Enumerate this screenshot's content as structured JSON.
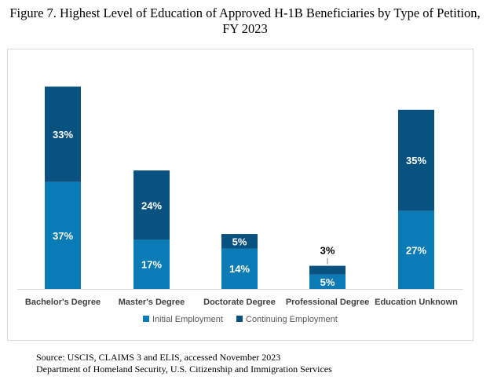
{
  "figure": {
    "title_line1": "Figure 7. Highest Level of Education of Approved H-1B Beneficiaries by Type of Petition,",
    "title_line2": "FY 2023"
  },
  "colors": {
    "initial": "#0a7bb5",
    "continuing": "#09527f",
    "label_light": "#ffffff",
    "label_dark": "#000000",
    "axis": "#d9d9d9"
  },
  "chart_data": {
    "type": "bar",
    "stacked": true,
    "title": "Highest Level of Education of Approved H-1B Beneficiaries by Type of Petition, FY 2023",
    "categories": [
      "Bachelor's Degree",
      "Master's Degree",
      "Doctorate Degree",
      "Professional Degree",
      "Education Unknown"
    ],
    "series": [
      {
        "name": "Initial Employment",
        "values": [
          37,
          17,
          14,
          5,
          27
        ],
        "labels": [
          "37%",
          "17%",
          "14%",
          "5%",
          "27%"
        ]
      },
      {
        "name": "Continuing Employment",
        "values": [
          33,
          24,
          5,
          3,
          35
        ],
        "labels": [
          "33%",
          "24%",
          "5%",
          "3%",
          "35%"
        ]
      }
    ],
    "xlabel": "",
    "ylabel": "",
    "ylim": [
      0,
      72
    ],
    "grid": false,
    "legend": "bottom",
    "value_format": "percent"
  },
  "source": {
    "line1": "Source: USCIS, CLAIMS 3 and ELIS, accessed November 2023",
    "line2": "Department of Homeland Security, U.S. Citizenship and Immigration Services"
  }
}
